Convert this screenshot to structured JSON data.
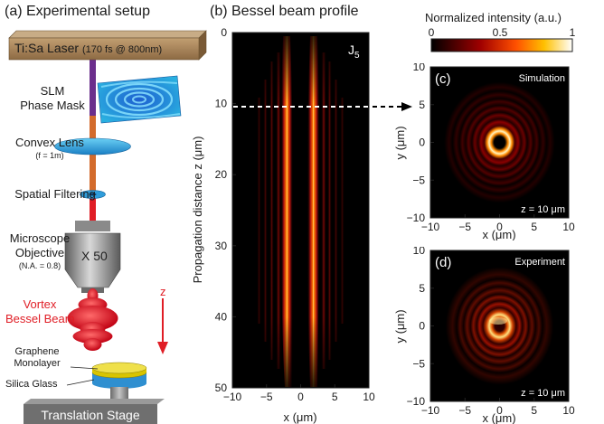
{
  "panel_a": {
    "title": "(a) Experimental setup",
    "laser_label": "Ti:Sa Laser",
    "laser_spec": "(170 fs @ 800nm)",
    "slm_line1": "SLM",
    "slm_line2": "Phase Mask",
    "lens_label": "Convex Lens",
    "lens_spec": "(f = 1m)",
    "filter_label": "Spatial Filtering",
    "objective_line1": "Microscope",
    "objective_line2": "Objective",
    "objective_spec": "(N.A. = 0.8)",
    "objective_mag": "X 50",
    "beam_line1": "Vortex",
    "beam_line2": "Bessel Beam",
    "z_label": "z",
    "graphene_line1": "Graphene",
    "graphene_line2": "Monolayer",
    "glass_label": "Silica Glass",
    "stage_label": "Translation Stage",
    "colors": {
      "beam_red": "#e01d25",
      "laser_box": "#a48157",
      "graphene": "#d8c400",
      "glass": "#2f8fd0"
    }
  },
  "panel_b": {
    "title": "(b) Bessel beam profile",
    "order_label": "J",
    "order_sub": "5",
    "ylabel": "Propagation distance z (μm)",
    "xlabel": "x (μm)",
    "xticks": [
      "−10",
      "−5",
      "0",
      "5",
      "10"
    ],
    "yticks": [
      "0",
      "10",
      "20",
      "30",
      "40",
      "50"
    ]
  },
  "colorbar": {
    "title": "Normalized intensity (a.u.)",
    "ticks": [
      "0",
      "0.5",
      "1"
    ]
  },
  "panel_c": {
    "label": "(c)",
    "tag": "Simulation",
    "z_note": "z = 10 μm",
    "xlabel": "x (μm)",
    "ylabel": "y (μm)",
    "xticks": [
      "−10",
      "−5",
      "0",
      "5",
      "10"
    ],
    "yticks": [
      "10",
      "5",
      "0",
      "−5",
      "−10"
    ]
  },
  "panel_d": {
    "label": "(d)",
    "tag": "Experiment",
    "z_note": "z = 10 μm",
    "xlabel": "x (μm)",
    "ylabel": "y (μm)",
    "xticks": [
      "−10",
      "−5",
      "0",
      "5",
      "10"
    ],
    "yticks": [
      "10",
      "5",
      "0",
      "−5",
      "−10"
    ]
  },
  "marker": {
    "z_value": "10"
  }
}
